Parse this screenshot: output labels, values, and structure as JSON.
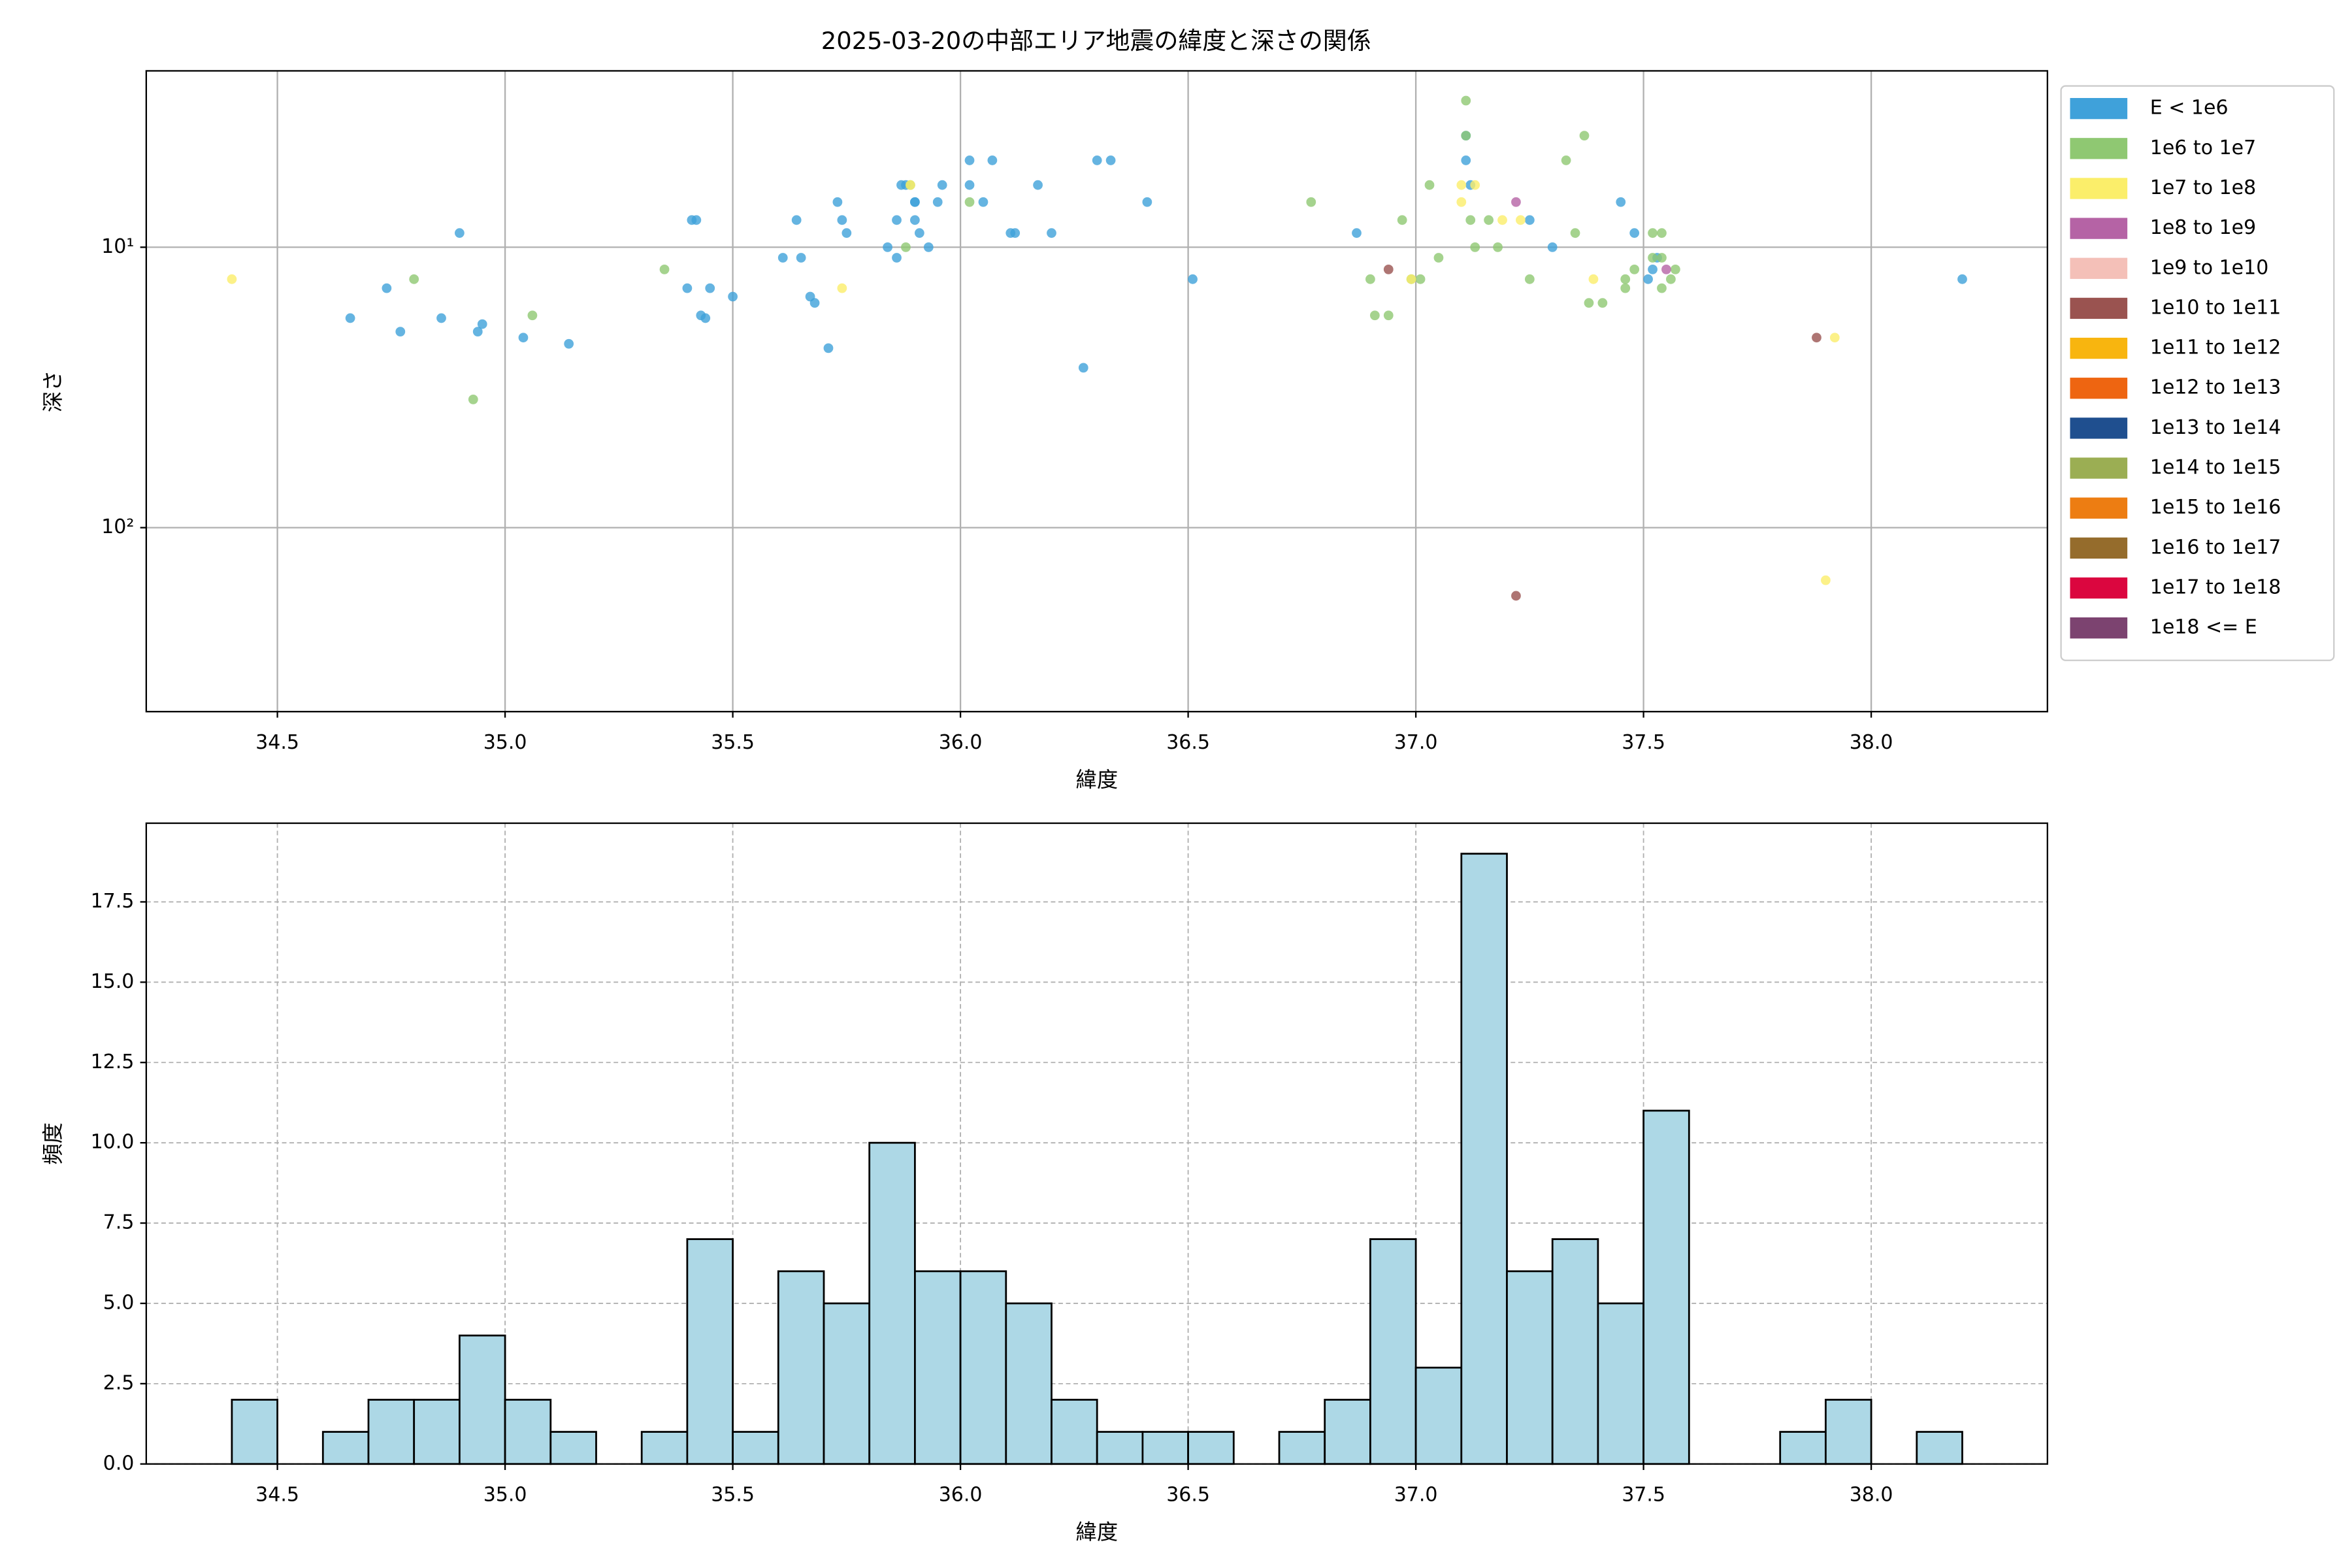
{
  "chart_data": [
    {
      "type": "scatter",
      "title": "2025-03-20の中部エリア地震の緯度と深さの関係",
      "x_label": "緯度",
      "y_label": "深さ",
      "yscale": "log",
      "y_inverted": true,
      "grid": true,
      "legend": "outside right",
      "xlim": [
        34.212,
        38.387
      ],
      "ylim": [
        2.35,
        453
      ],
      "xticks": [
        34.5,
        {
          "value": 35.0,
          "label": "35.0"
        },
        35.5,
        {
          "value": 36.0,
          "label": "36.0"
        },
        36.5,
        {
          "value": 37.0,
          "label": "37.0"
        },
        37.5,
        {
          "value": 38.0,
          "label": "38.0"
        }
      ],
      "yticks": [
        {
          "value": 10,
          "label": "10¹"
        },
        {
          "value": 100,
          "label": "10²"
        }
      ],
      "series": [
        {
          "name": "E < 1e6",
          "color": "#3fa1da",
          "x": [
            34.66,
            34.74,
            34.77,
            34.86,
            34.9,
            34.94,
            34.95,
            35.04,
            35.14,
            35.4,
            35.41,
            35.42,
            35.43,
            35.44,
            35.45,
            35.5,
            35.61,
            35.64,
            35.65,
            35.67,
            35.68,
            35.71,
            35.73,
            35.74,
            35.75,
            35.84,
            35.86,
            35.86,
            35.87,
            35.88,
            35.9,
            35.9,
            35.9,
            35.91,
            35.93,
            35.95,
            35.96,
            36.02,
            36.02,
            36.05,
            36.07,
            36.11,
            36.12,
            36.17,
            36.2,
            36.27,
            36.3,
            36.33,
            36.41,
            36.51,
            36.87,
            37.3,
            37.25,
            37.45,
            37.48,
            37.11,
            37.11,
            37.12,
            37.53,
            37.51,
            37.52,
            38.2
          ],
          "values": [
            17.9,
            14.0,
            20.0,
            17.9,
            8.9,
            20.0,
            18.8,
            21.0,
            22.1,
            14.0,
            8.0,
            8.0,
            17.5,
            17.9,
            14.0,
            15.0,
            10.9,
            8.0,
            10.9,
            15.0,
            15.8,
            22.9,
            6.9,
            8.0,
            8.9,
            10,
            10.9,
            8.0,
            6.0,
            6.0,
            6.9,
            6.9,
            8.0,
            8.9,
            10,
            6.9,
            6.0,
            4.9,
            6.0,
            6.9,
            4.9,
            8.9,
            8.9,
            6.0,
            8.9,
            26.9,
            4.9,
            4.9,
            6.9,
            13.0,
            8.9,
            10,
            8.0,
            6.9,
            8.9,
            4.9,
            4.0,
            6.0,
            10.9,
            13.0,
            12.0,
            13.0
          ]
        },
        {
          "name": "1e6 to 1e7",
          "color": "#8fc872",
          "x": [
            34.8,
            34.93,
            35.06,
            35.35,
            35.88,
            35.89,
            36.02,
            36.77,
            36.9,
            36.91,
            36.94,
            36.97,
            36.99,
            37.01,
            37.03,
            37.05,
            37.11,
            37.11,
            37.12,
            37.13,
            37.16,
            37.18,
            37.33,
            37.35,
            37.37,
            37.38,
            37.41,
            37.46,
            37.46,
            37.48,
            37.52,
            37.52,
            37.54,
            37.54,
            37.56,
            37.57,
            37.25,
            37.54
          ],
          "values": [
            13.0,
            34.9,
            17.5,
            12.0,
            10,
            6.0,
            6.9,
            6.9,
            13.0,
            17.5,
            17.5,
            8.0,
            13.0,
            13.0,
            6.0,
            10.9,
            3.0,
            4.0,
            8.0,
            10,
            8.0,
            10,
            4.9,
            8.9,
            4.0,
            15.8,
            15.8,
            13.0,
            14.0,
            12.0,
            10.9,
            8.9,
            8.9,
            14.0,
            13.0,
            12.0,
            13.0,
            10.9
          ]
        },
        {
          "name": "1e7 to 1e8",
          "color": "#fbee6a",
          "x": [
            34.4,
            35.74,
            35.89,
            36.99,
            37.1,
            37.1,
            37.13,
            37.19,
            37.39,
            37.9,
            37.92,
            37.23
          ],
          "values": [
            13.0,
            14.0,
            6.0,
            13.0,
            6.0,
            6.9,
            6.0,
            8.0,
            13.0,
            154,
            21.0,
            8.0
          ]
        },
        {
          "name": "1e8 to 1e9",
          "color": "#b563a5",
          "x": [
            37.22,
            37.55
          ],
          "values": [
            6.9,
            12.0
          ]
        },
        {
          "name": "1e9 to 1e10",
          "color": "#f4c0b8",
          "x": [],
          "values": []
        },
        {
          "name": "1e10 to 1e11",
          "color": "#9a5350",
          "x": [
            36.94,
            37.22,
            37.88
          ],
          "values": [
            12.0,
            175,
            21.0
          ]
        },
        {
          "name": "1e11 to 1e12",
          "color": "#f8b50f",
          "x": [],
          "values": []
        },
        {
          "name": "1e12 to 1e13",
          "color": "#ee6511",
          "x": [],
          "values": []
        },
        {
          "name": "1e13 to 1e14",
          "color": "#1f4f8f",
          "x": [],
          "values": []
        },
        {
          "name": "1e14 to 1e15",
          "color": "#9bae53",
          "x": [],
          "values": []
        },
        {
          "name": "1e15 to 1e16",
          "color": "#ed7d12",
          "x": [],
          "values": []
        },
        {
          "name": "1e16 to 1e17",
          "color": "#956c2c",
          "x": [],
          "values": []
        },
        {
          "name": "1e17 to 1e18",
          "color": "#db063f",
          "x": [],
          "values": []
        },
        {
          "name": "1e18 <= E",
          "color": "#7c4370",
          "x": [],
          "values": []
        }
      ]
    },
    {
      "type": "histogram",
      "x_label": "緯度",
      "y_label": "頻度",
      "color": "#add8e6",
      "edgecolor": "#000000",
      "grid": "dashed",
      "xlim": [
        34.212,
        38.387
      ],
      "ylim": [
        0,
        19.95
      ],
      "xticks": [
        34.5,
        {
          "value": 35.0,
          "label": "35.0"
        },
        35.5,
        {
          "value": 36.0,
          "label": "36.0"
        },
        36.5,
        {
          "value": 37.0,
          "label": "37.0"
        },
        37.5,
        {
          "value": 38.0,
          "label": "38.0"
        }
      ],
      "yticks": [
        {
          "value": 0,
          "label": "0.0"
        },
        2.5,
        {
          "value": 5,
          "label": "5.0"
        },
        7.5,
        {
          "value": 10,
          "label": "10.0"
        },
        12.5,
        {
          "value": 15,
          "label": "15.0"
        },
        17.5
      ],
      "bins": [
        34.4,
        34.5,
        34.6,
        34.7,
        34.8,
        34.9,
        35.0,
        35.1,
        35.2,
        35.3,
        35.4,
        35.5,
        35.6,
        35.7,
        35.8,
        35.9,
        36.0,
        36.1,
        36.2,
        36.3,
        36.4,
        36.5,
        36.6,
        36.7,
        36.8,
        36.9,
        37.0,
        37.1,
        37.2,
        37.3,
        37.4,
        37.5,
        37.6,
        37.7,
        37.8,
        37.9,
        38.0,
        38.1,
        38.2
      ],
      "values": [
        2,
        0,
        1,
        2,
        2,
        4,
        2,
        1,
        0,
        1,
        7,
        1,
        6,
        5,
        10,
        6,
        6,
        5,
        2,
        1,
        1,
        1,
        0,
        1,
        2,
        7,
        3,
        19,
        6,
        7,
        5,
        11,
        0,
        0,
        1,
        2,
        0,
        1
      ]
    }
  ]
}
